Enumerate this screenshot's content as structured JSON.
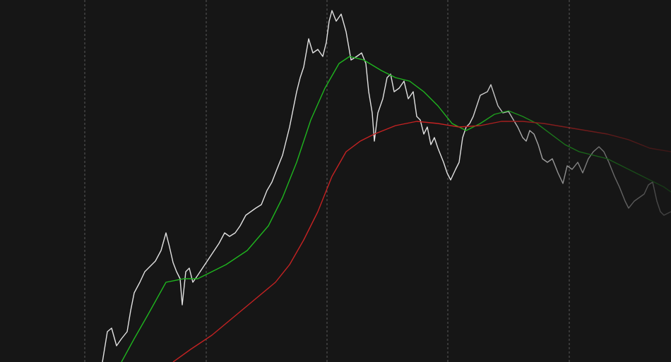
{
  "chart_data": {
    "type": "line",
    "xlim": [
      0,
      950
    ],
    "ylim": [
      0,
      513
    ],
    "xticks": [
      120,
      292,
      463,
      634,
      806
    ],
    "grid": true,
    "series": [
      {
        "color": "#e2e2e2",
        "x": [
          145,
          152,
          158,
          165,
          172,
          180,
          185,
          190,
          198,
          205,
          212,
          220,
          228,
          235,
          240,
          245,
          250,
          255,
          258,
          263,
          268,
          273,
          280,
          290,
          300,
          310,
          318,
          325,
          333,
          340,
          348,
          355,
          362,
          370,
          378,
          385,
          392,
          400,
          405,
          410,
          415,
          420,
          425,
          430,
          437,
          443,
          450,
          457,
          462,
          466,
          470,
          476,
          483,
          490,
          497,
          505,
          512,
          518,
          522,
          527,
          530,
          535,
          542,
          548,
          553,
          558,
          565,
          572,
          578,
          585,
          590,
          595,
          600,
          605,
          610,
          615,
          620,
          628,
          633,
          638,
          645,
          650,
          655,
          660,
          665,
          670,
          675,
          680,
          690,
          695,
          700,
          705,
          712,
          720,
          727,
          733,
          740,
          745,
          750,
          756,
          762,
          768,
          775,
          782,
          790,
          797,
          803,
          810,
          818,
          825,
          833,
          840,
          848,
          855,
          862,
          870,
          877,
          885,
          890,
          898,
          905,
          912,
          918,
          924,
          930,
          935,
          940,
          950
        ],
        "values": [
          0,
          43,
          48,
          23,
          33,
          43,
          73,
          98,
          113,
          128,
          135,
          143,
          158,
          183,
          163,
          141,
          128,
          118,
          81,
          128,
          133,
          113,
          123,
          138,
          153,
          168,
          183,
          178,
          183,
          193,
          208,
          213,
          218,
          223,
          243,
          255,
          273,
          293,
          313,
          333,
          358,
          383,
          403,
          418,
          458,
          438,
          443,
          433,
          453,
          483,
          498,
          483,
          493,
          468,
          428,
          433,
          438,
          423,
          383,
          353,
          313,
          353,
          373,
          403,
          408,
          383,
          388,
          398,
          373,
          383,
          348,
          343,
          323,
          333,
          308,
          318,
          303,
          283,
          268,
          258,
          273,
          283,
          318,
          333,
          338,
          348,
          363,
          378,
          383,
          393,
          378,
          363,
          353,
          355,
          343,
          333,
          318,
          313,
          328,
          323,
          308,
          288,
          283,
          288,
          268,
          253,
          278,
          273,
          283,
          268,
          288,
          298,
          305,
          298,
          283,
          263,
          248,
          228,
          218,
          228,
          233,
          238,
          251,
          255,
          228,
          213,
          208,
          213
        ]
      },
      {
        "color": "#1fb51f",
        "x": [
          172,
          190,
          210,
          235,
          260,
          280,
          300,
          320,
          350,
          380,
          400,
          420,
          440,
          460,
          480,
          495,
          515,
          540,
          560,
          580,
          600,
          620,
          640,
          660,
          680,
          700,
          720,
          740,
          760,
          780,
          800,
          820,
          840,
          860,
          880,
          900,
          920,
          940,
          950
        ],
        "values": [
          0,
          33,
          68,
          113,
          118,
          118,
          128,
          138,
          158,
          193,
          233,
          283,
          343,
          388,
          423,
          433,
          428,
          413,
          403,
          398,
          383,
          363,
          338,
          328,
          338,
          351,
          356,
          348,
          338,
          323,
          308,
          298,
          293,
          288,
          278,
          268,
          258,
          248,
          241
        ]
      },
      {
        "color": "#c42222",
        "x": [
          245,
          270,
          300,
          330,
          360,
          390,
          410,
          430,
          450,
          470,
          490,
          510,
          530,
          560,
          590,
          620,
          650,
          680,
          710,
          740,
          770,
          800,
          830,
          860,
          890,
          920,
          950
        ],
        "values": [
          0,
          18,
          38,
          63,
          88,
          113,
          138,
          173,
          213,
          263,
          298,
          313,
          323,
          335,
          341,
          338,
          333,
          335,
          341,
          341,
          338,
          333,
          328,
          323,
          315,
          303,
          298
        ]
      }
    ]
  }
}
